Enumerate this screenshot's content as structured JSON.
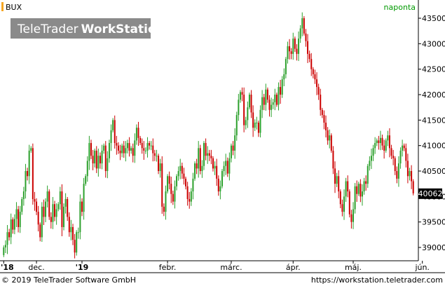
{
  "header": {
    "symbol": "BUX",
    "interval": "naponta",
    "watermark_light": "TeleTrader",
    "watermark_bold": "WorkStation"
  },
  "footer": {
    "copyright": "© 2019 TeleTrader Software GmbH",
    "url": "https://workstation.teletrader.com"
  },
  "colors": {
    "up": "#2ca02c",
    "down": "#cc0000",
    "symbol_marker": "#f5a623",
    "interval_text": "#009900",
    "watermark_bg": "#8a8a8a"
  },
  "chart_data": {
    "type": "candlestick",
    "title": "BUX",
    "frequency": "naponta",
    "y_ticks": [
      39000,
      39500,
      40000,
      40500,
      41000,
      41500,
      42000,
      42500,
      43000,
      43500
    ],
    "ylim": [
      38700,
      43600
    ],
    "last_value": "40062",
    "x_labels": [
      "'18",
      "dec.",
      "'19",
      "febr.",
      "márc.",
      "ápr.",
      "máj.",
      "jún."
    ],
    "x_label_index": [
      0,
      18,
      43,
      90,
      125,
      159,
      192,
      230
    ],
    "closes": [
      39000,
      39050,
      39300,
      39200,
      39550,
      39350,
      39560,
      39750,
      39400,
      39700,
      39950,
      40100,
      40500,
      40400,
      40900,
      40950,
      39950,
      39900,
      39700,
      39450,
      39200,
      39800,
      39600,
      39900,
      40100,
      39600,
      39500,
      39850,
      39600,
      39750,
      39850,
      40100,
      39400,
      39800,
      39950,
      39600,
      39300,
      39400,
      39150,
      38900,
      39300,
      39300,
      39900,
      39700,
      40250,
      40400,
      40700,
      41050,
      40800,
      40650,
      40900,
      40550,
      40800,
      40650,
      40900,
      41000,
      40500,
      40750,
      41050,
      41300,
      41500,
      41050,
      41000,
      40900,
      40850,
      41000,
      40850,
      40950,
      41050,
      40900,
      40950,
      40800,
      41100,
      41350,
      41150,
      41050,
      40950,
      40900,
      40900,
      41050,
      41000,
      41000,
      40850,
      40800,
      40800,
      40500,
      40650,
      39800,
      39700,
      40100,
      40400,
      40250,
      40050,
      39900,
      40200,
      40400,
      40500,
      40600,
      40450,
      40350,
      40200,
      39950,
      39900,
      40100,
      40350,
      40650,
      40550,
      40950,
      40500,
      40600,
      41050,
      40800,
      40850,
      40800,
      40750,
      40550,
      40600,
      40350,
      40100,
      40200,
      40500,
      40600,
      40700,
      40450,
      40750,
      41000,
      40900,
      41200,
      41600,
      41900,
      42050,
      42000,
      41400,
      41500,
      41750,
      42000,
      41650,
      41350,
      41450,
      41450,
      41250,
      41700,
      41950,
      41800,
      42100,
      41900,
      41700,
      41800,
      41850,
      42000,
      41800,
      42150,
      42000,
      42300,
      42400,
      42700,
      42950,
      42850,
      42800,
      43100,
      42900,
      42800,
      43100,
      43300,
      43500,
      43200,
      43050,
      42800,
      42700,
      42500,
      42400,
      42300,
      42150,
      42000,
      41700,
      41600,
      41450,
      41300,
      41100,
      41200,
      40900,
      40550,
      40250,
      40400,
      40100,
      39850,
      39700,
      40000,
      40300,
      40100,
      39650,
      39500,
      39750,
      40200,
      40050,
      40250,
      40000,
      40100,
      40300,
      40250,
      40600,
      40700,
      40800,
      40950,
      41050,
      41100,
      41050,
      41150,
      41000,
      40900,
      41100,
      41200,
      40950,
      40800,
      40750,
      40500,
      40350,
      40650,
      40900,
      41000,
      40950,
      40700,
      40400,
      40500,
      40300,
      40062
    ]
  }
}
